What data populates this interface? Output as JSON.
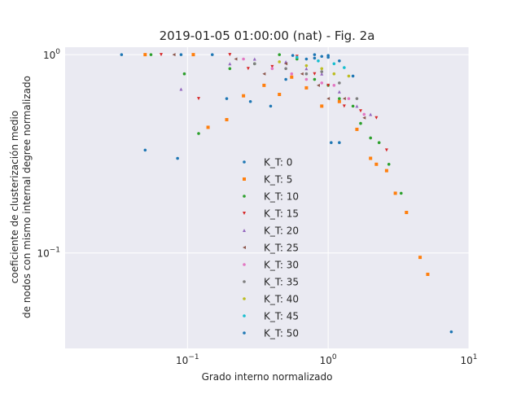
{
  "chart_data": {
    "type": "scatter",
    "title": "2019-01-05 01:00:00 (nat) - Fig. 2a",
    "xlabel": "Grado interno normalizado",
    "ylabel": [
      "coeficiente de clusterización medio",
      "de nodos con mismo internal degree normalizado"
    ],
    "xscale": "log",
    "yscale": "log",
    "xlim": [
      0.0135,
      10
    ],
    "ylim": [
      0.033,
      1.09
    ],
    "x_ticks": [
      {
        "value": 0.1,
        "base": "10",
        "exp": "−1"
      },
      {
        "value": 1,
        "base": "10",
        "exp": "0"
      },
      {
        "value": 10,
        "base": "10",
        "exp": "1"
      }
    ],
    "y_ticks": [
      {
        "value": 0.1,
        "base": "10",
        "exp": "−1"
      },
      {
        "value": 1,
        "base": "10",
        "exp": "0"
      }
    ],
    "grid": true,
    "legend_position": "lower-center",
    "series": [
      {
        "name": "K_T: 0",
        "color": "#1f77b4",
        "marker": "circle",
        "points": [
          [
            0.034,
            1.0
          ],
          [
            0.09,
            1.0
          ],
          [
            0.05,
            0.33
          ],
          [
            0.085,
            0.3
          ],
          [
            0.19,
            0.6
          ],
          [
            0.28,
            0.58
          ],
          [
            0.39,
            0.55
          ],
          [
            0.56,
            0.99
          ],
          [
            0.7,
            0.95
          ],
          [
            0.8,
            1.0
          ],
          [
            0.9,
            0.98
          ],
          [
            1.0,
            0.99
          ],
          [
            1.05,
            0.36
          ],
          [
            1.2,
            0.36
          ],
          [
            7.5,
            0.04
          ]
        ]
      },
      {
        "name": "K_T: 5",
        "color": "#ff7f0e",
        "marker": "square",
        "points": [
          [
            0.05,
            1.0
          ],
          [
            0.11,
            1.0
          ],
          [
            0.14,
            0.43
          ],
          [
            0.19,
            0.47
          ],
          [
            0.25,
            0.62
          ],
          [
            0.35,
            0.7
          ],
          [
            0.45,
            0.63
          ],
          [
            0.55,
            0.77
          ],
          [
            0.7,
            0.68
          ],
          [
            0.9,
            0.55
          ],
          [
            1.2,
            0.58
          ],
          [
            1.6,
            0.42
          ],
          [
            2.0,
            0.3
          ],
          [
            2.2,
            0.28
          ],
          [
            2.6,
            0.26
          ],
          [
            3.0,
            0.2
          ],
          [
            3.6,
            0.16
          ],
          [
            4.5,
            0.095
          ],
          [
            5.1,
            0.078
          ]
        ]
      },
      {
        "name": "K_T: 10",
        "color": "#2ca02c",
        "marker": "circle",
        "points": [
          [
            0.055,
            1.0
          ],
          [
            0.095,
            0.8
          ],
          [
            0.12,
            0.4
          ],
          [
            0.2,
            0.85
          ],
          [
            0.3,
            0.9
          ],
          [
            0.45,
            1.0
          ],
          [
            0.6,
            0.95
          ],
          [
            0.8,
            0.75
          ],
          [
            1.0,
            0.7
          ],
          [
            1.2,
            0.6
          ],
          [
            1.5,
            0.55
          ],
          [
            1.7,
            0.45
          ],
          [
            2.0,
            0.38
          ],
          [
            2.3,
            0.36
          ],
          [
            2.7,
            0.28
          ],
          [
            3.3,
            0.2
          ]
        ]
      },
      {
        "name": "K_T: 15",
        "color": "#d62728",
        "marker": "triangle-down",
        "points": [
          [
            0.065,
            1.0
          ],
          [
            0.12,
            0.6
          ],
          [
            0.2,
            1.0
          ],
          [
            0.27,
            0.85
          ],
          [
            0.4,
            0.87
          ],
          [
            0.6,
            0.98
          ],
          [
            0.8,
            0.8
          ],
          [
            1.0,
            0.7
          ],
          [
            1.3,
            0.55
          ],
          [
            1.7,
            0.52
          ],
          [
            2.2,
            0.48
          ],
          [
            2.6,
            0.33
          ]
        ]
      },
      {
        "name": "K_T: 20",
        "color": "#9467bd",
        "marker": "triangle-up",
        "points": [
          [
            0.09,
            0.67
          ],
          [
            0.2,
            0.9
          ],
          [
            0.3,
            0.95
          ],
          [
            0.5,
            0.92
          ],
          [
            0.7,
            0.85
          ],
          [
            0.9,
            0.8
          ],
          [
            1.2,
            0.65
          ],
          [
            1.6,
            0.55
          ],
          [
            2.0,
            0.5
          ]
        ]
      },
      {
        "name": "K_T: 25",
        "color": "#8c564b",
        "marker": "triangle-left",
        "points": [
          [
            0.08,
            1.0
          ],
          [
            0.22,
            0.95
          ],
          [
            0.35,
            0.8
          ],
          [
            0.5,
            0.9
          ],
          [
            0.65,
            0.8
          ],
          [
            0.85,
            0.7
          ],
          [
            1.0,
            0.6
          ],
          [
            1.3,
            0.6
          ],
          [
            1.8,
            0.48
          ]
        ]
      },
      {
        "name": "K_T: 30",
        "color": "#e377c2",
        "marker": "circle",
        "points": [
          [
            0.25,
            0.95
          ],
          [
            0.4,
            0.85
          ],
          [
            0.55,
            0.8
          ],
          [
            0.7,
            0.75
          ],
          [
            0.9,
            0.72
          ],
          [
            1.1,
            0.7
          ],
          [
            1.4,
            0.6
          ],
          [
            1.8,
            0.5
          ]
        ]
      },
      {
        "name": "K_T: 35",
        "color": "#7f7f7f",
        "marker": "circle",
        "points": [
          [
            0.3,
            0.9
          ],
          [
            0.5,
            0.85
          ],
          [
            0.7,
            0.8
          ],
          [
            0.9,
            0.82
          ],
          [
            1.2,
            0.72
          ],
          [
            1.6,
            0.6
          ]
        ]
      },
      {
        "name": "K_T: 40",
        "color": "#bcbd22",
        "marker": "circle",
        "points": [
          [
            0.45,
            0.92
          ],
          [
            0.7,
            0.88
          ],
          [
            0.9,
            0.85
          ],
          [
            1.1,
            0.8
          ],
          [
            1.4,
            0.78
          ]
        ]
      },
      {
        "name": "K_T: 45",
        "color": "#17becf",
        "marker": "circle",
        "points": [
          [
            0.6,
            0.97
          ],
          [
            0.85,
            0.93
          ],
          [
            1.1,
            0.9
          ],
          [
            1.3,
            0.86
          ]
        ]
      },
      {
        "name": "K_T: 50",
        "color": "#1f77b4",
        "marker": "circle",
        "points": [
          [
            0.15,
            1.0
          ],
          [
            0.5,
            0.75
          ],
          [
            0.8,
            0.96
          ],
          [
            1.0,
            0.97
          ],
          [
            1.2,
            0.93
          ],
          [
            1.5,
            0.78
          ]
        ]
      }
    ]
  }
}
